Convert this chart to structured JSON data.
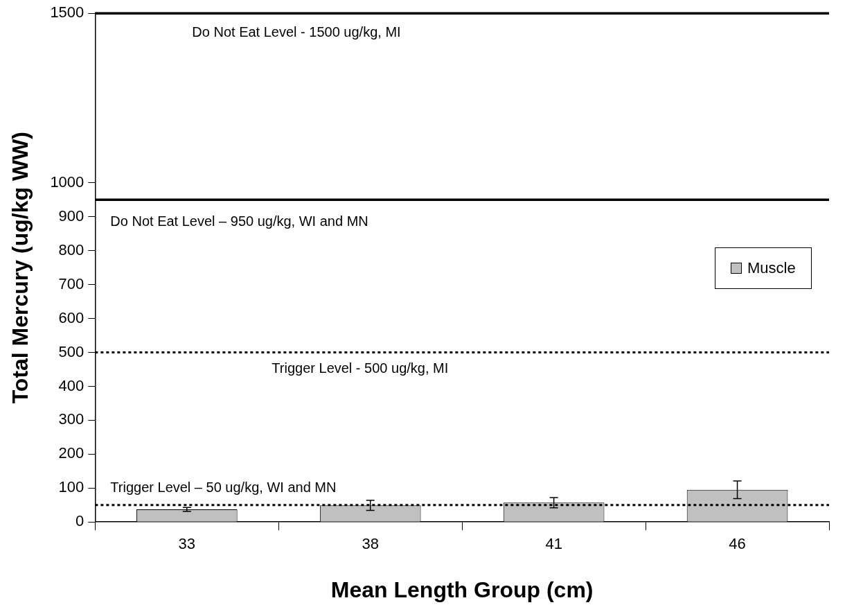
{
  "chart_data": {
    "type": "bar",
    "xlabel": "Mean Length Group (cm)",
    "ylabel": "Total Mercury (ug/kg WW)",
    "categories": [
      "33",
      "38",
      "41",
      "46"
    ],
    "series": [
      {
        "name": "Muscle",
        "color": "#c0c0c0",
        "values": [
          37,
          49,
          57,
          95
        ],
        "errors": [
          6,
          15,
          15,
          26
        ]
      }
    ],
    "ylim": [
      0,
      1500
    ],
    "yticks": [
      0,
      100,
      200,
      300,
      400,
      500,
      600,
      700,
      800,
      900,
      1000,
      1500
    ],
    "ref_lines": [
      {
        "axis": "y",
        "value": 1500,
        "label": "Do Not Eat Level - 1500 ug/kg, MI",
        "color": "#000000",
        "line_style": "solid"
      },
      {
        "axis": "y",
        "value": 950,
        "label": "Do Not Eat Level – 950 ug/kg, WI and MN",
        "color": "#000000",
        "line_style": "solid"
      },
      {
        "axis": "y",
        "value": 500,
        "label": "Trigger Level - 500 ug/kg, MI",
        "color": "#000000",
        "line_style": "dotted"
      },
      {
        "axis": "y",
        "value": 50,
        "label": "Trigger Level – 50 ug/kg, WI and MN",
        "color": "#000000",
        "line_style": "dotted"
      }
    ],
    "legend": "right",
    "grid": false
  }
}
